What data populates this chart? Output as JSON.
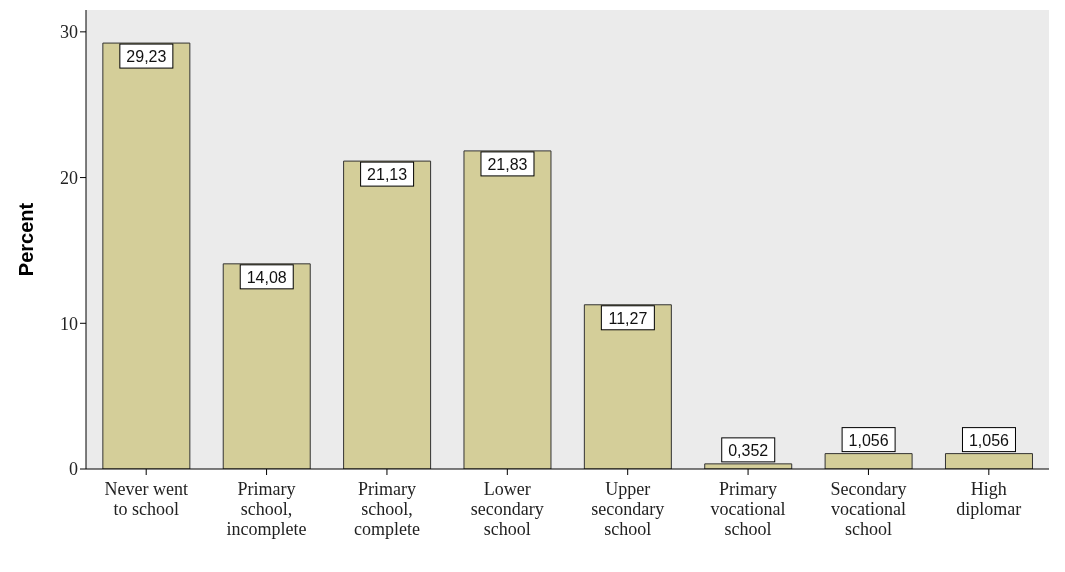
{
  "chart_data": {
    "type": "bar",
    "ylabel": "Percent",
    "categories": [
      "Never went\nto school",
      "Primary\nschool,\nincomplete",
      "Primary\nschool,\ncomplete",
      "Lower\nsecondary\nschool",
      "Upper\nsecondary\nschool",
      "Primary\nvocational\nschool",
      "Secondary\nvocational\nschool",
      "High\ndiplomar"
    ],
    "values": [
      29.23,
      14.08,
      21.13,
      21.83,
      11.27,
      0.352,
      1.056,
      1.056
    ],
    "value_labels": [
      "29,23",
      "14,08",
      "21,13",
      "21,83",
      "11,27",
      "0,352",
      "1,056",
      "1,056"
    ],
    "color": "#d4ce99",
    "ylim": [
      0,
      31.5
    ],
    "yticks": [
      0,
      10,
      20,
      30
    ]
  }
}
